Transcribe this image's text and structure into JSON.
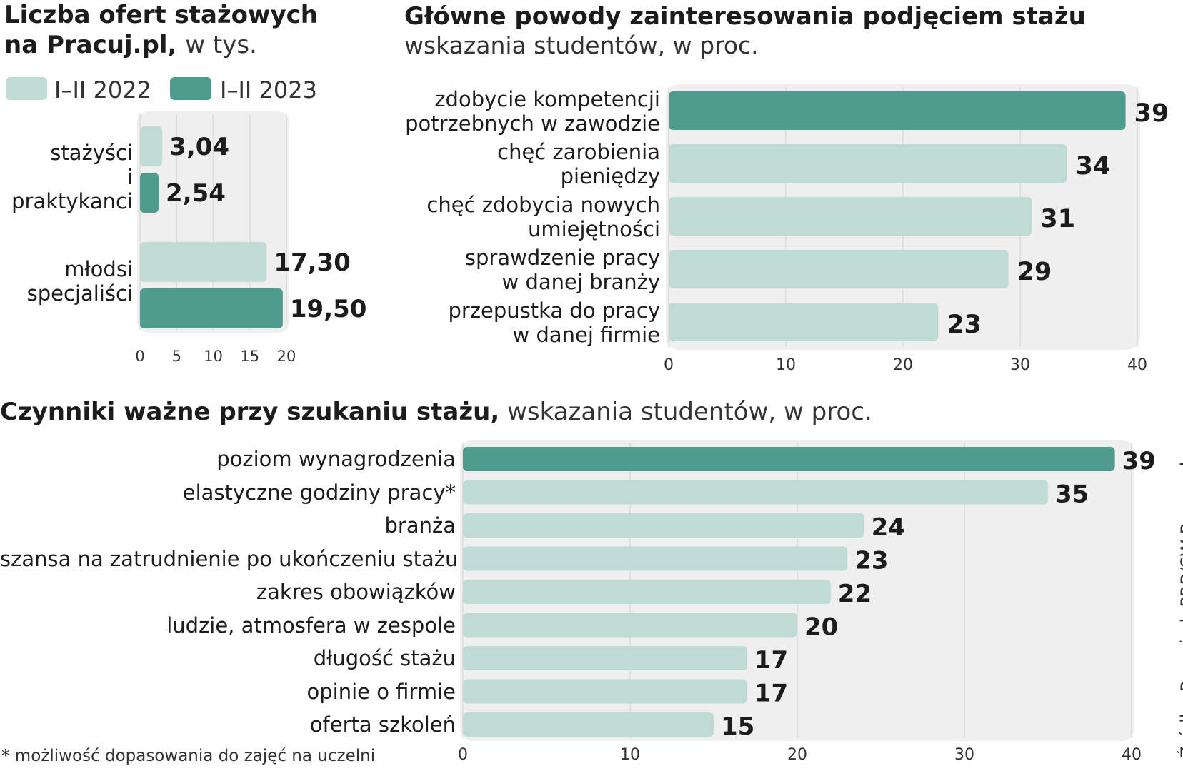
{
  "colors": {
    "light": "#c0dbd3",
    "dark": "#4e9c8d",
    "panel": "#efefef",
    "grid": "#dcdcdc"
  },
  "chart_data": [
    {
      "type": "bar",
      "orientation": "horizontal",
      "title": "Liczba ofert stażowych na Pracuj.pl,",
      "title_line1": "Liczba ofert stażowych",
      "title_line2_bold": "na Pracuj.pl,",
      "title_line2_light": "w tys.",
      "legend": [
        "I–II 2022",
        "I–II 2023"
      ],
      "groups": [
        {
          "label_line1": "stażyści",
          "label_line2": "i praktykanci",
          "values": [
            3.04,
            2.54
          ],
          "labels": [
            "3,04",
            "2,54"
          ]
        },
        {
          "label_line1": "młodsi",
          "label_line2": "specjaliści",
          "values": [
            17.3,
            19.5
          ],
          "labels": [
            "17,30",
            "19,50"
          ]
        }
      ],
      "xlim": [
        0,
        20
      ],
      "ticks": [
        "0",
        "5",
        "10",
        "15",
        "20"
      ]
    },
    {
      "type": "bar",
      "orientation": "horizontal",
      "title": "Główne powody zainteresowania podjęciem stażu",
      "subtitle": "wskazania studentów, w proc.",
      "categories": [
        {
          "l1": "zdobycie kompetencji",
          "l2": "potrzebnych w zawodzie",
          "value": 39,
          "label": "39",
          "highlight": true
        },
        {
          "l1": "chęć zarobienia",
          "l2": "pieniędzy",
          "value": 34,
          "label": "34",
          "highlight": false
        },
        {
          "l1": "chęć zdobycia nowych",
          "l2": "umiejętności",
          "value": 31,
          "label": "31",
          "highlight": false
        },
        {
          "l1": "sprawdzenie pracy",
          "l2": "w danej branży",
          "value": 29,
          "label": "29",
          "highlight": false
        },
        {
          "l1": "przepustka do pracy",
          "l2": "w danej firmie",
          "value": 23,
          "label": "23",
          "highlight": false
        }
      ],
      "xlim": [
        0,
        40
      ],
      "ticks": [
        "0",
        "10",
        "20",
        "30",
        "40"
      ]
    },
    {
      "type": "bar",
      "orientation": "horizontal",
      "title": "Czynniki ważne przy szukaniu stażu,",
      "subtitle": "wskazania studentów, w proc.",
      "categories": [
        {
          "label": "poziom wynagrodzenia",
          "value": 39,
          "vlabel": "39",
          "highlight": true
        },
        {
          "label": "elastyczne godziny pracy*",
          "value": 35,
          "vlabel": "35",
          "highlight": false
        },
        {
          "label": "branża",
          "value": 24,
          "vlabel": "24",
          "highlight": false
        },
        {
          "label": "szansa na zatrudnienie po ukończeniu stażu",
          "value": 23,
          "vlabel": "23",
          "highlight": false
        },
        {
          "label": "zakres obowiązków",
          "value": 22,
          "vlabel": "22",
          "highlight": false
        },
        {
          "label": "ludzie, atmosfera w zespole",
          "value": 20,
          "vlabel": "20",
          "highlight": false
        },
        {
          "label": "długość stażu",
          "value": 17,
          "vlabel": "17",
          "highlight": false
        },
        {
          "label": "opinie o firmie",
          "value": 17,
          "vlabel": "17",
          "highlight": false
        },
        {
          "label": "oferta szkoleń",
          "value": 15,
          "vlabel": "15",
          "highlight": false
        }
      ],
      "xlim": [
        0,
        40
      ],
      "ticks": [
        "0",
        "10",
        "20",
        "30",
        "40"
      ]
    }
  ],
  "footnote": "* możliwość dopasowania do zajęć na uczelni",
  "source": "Źródło: Pracuj.pl, PRB/SW Research"
}
